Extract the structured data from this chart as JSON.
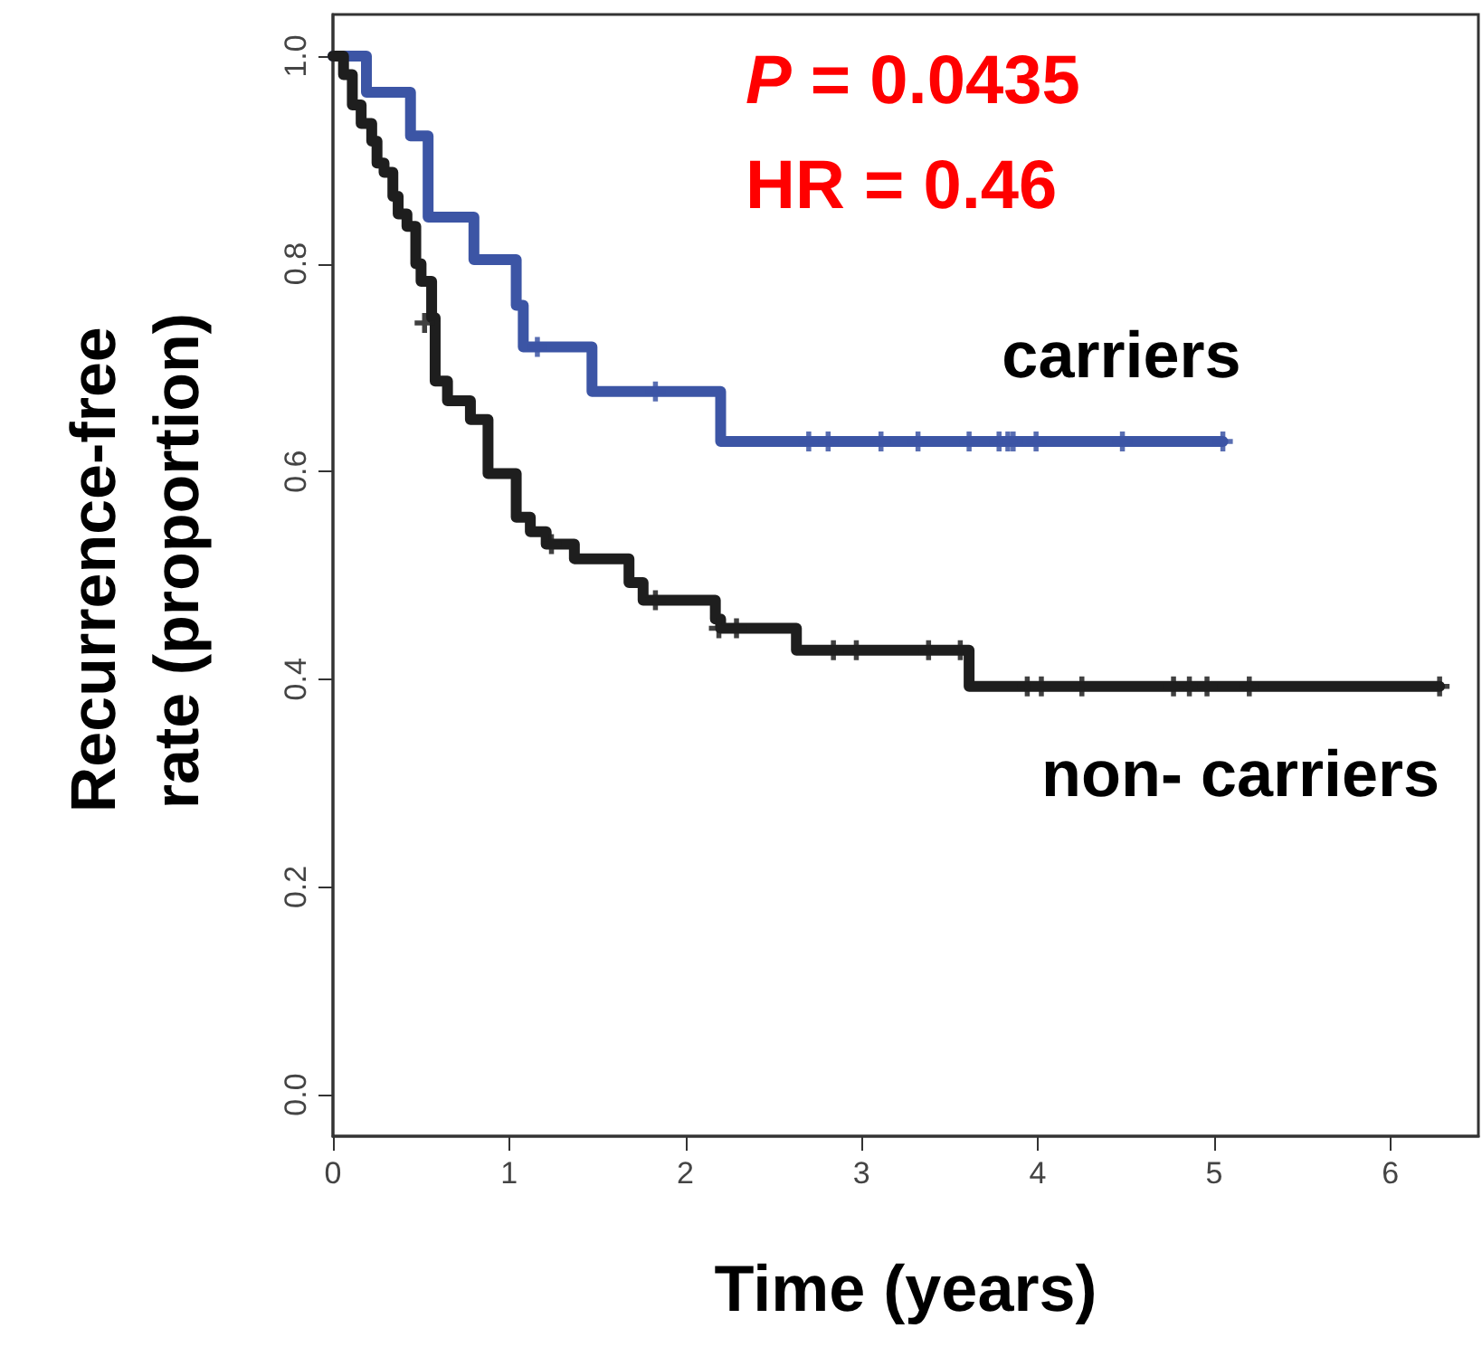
{
  "chart_data": {
    "type": "step",
    "xlabel": "Time (years)",
    "ylabel": "Recurrence-free rate (proportion)",
    "annotations": [
      "P = 0.0435",
      "HR = 0.46"
    ],
    "xlim": [
      0,
      6.5
    ],
    "ylim": [
      -0.04,
      1.04
    ],
    "xticks": [
      0,
      1,
      2,
      3,
      4,
      5,
      6
    ],
    "yticks": [
      {
        "value": 0,
        "label": "0.0"
      },
      {
        "value": 0.2,
        "label": "0.2"
      },
      {
        "value": 0.4,
        "label": "0.4"
      },
      {
        "value": 0.6,
        "label": "0.6"
      },
      {
        "value": 0.8,
        "label": "0.8"
      },
      {
        "value": 1,
        "label": "1.0"
      }
    ],
    "grid": false,
    "legend": false,
    "series": [
      {
        "name": "carriers",
        "color": "#3c55a5",
        "marker": "none",
        "x": [
          0,
          0.19,
          0.44,
          0.54,
          0.8,
          1.04,
          1.08,
          1.47,
          2.2,
          5.05
        ],
        "values": [
          1,
          0.965,
          0.923,
          0.845,
          0.804,
          0.76,
          0.72,
          0.677,
          0.629,
          0.629
        ]
      },
      {
        "name": "non- carriers",
        "color": "#1e1e1e",
        "marker": "none",
        "x": [
          0,
          0.06,
          0.11,
          0.16,
          0.22,
          0.25,
          0.29,
          0.34,
          0.37,
          0.42,
          0.47,
          0.5,
          0.56,
          0.58,
          0.65,
          0.78,
          0.88,
          1.04,
          1.12,
          1.21,
          1.37,
          1.68,
          1.76,
          2.17,
          2.2,
          2.63,
          3.61,
          6.28
        ],
        "values": [
          1,
          0.982,
          0.953,
          0.935,
          0.918,
          0.897,
          0.888,
          0.865,
          0.848,
          0.836,
          0.8,
          0.783,
          0.748,
          0.687,
          0.668,
          0.65,
          0.598,
          0.556,
          0.542,
          0.53,
          0.516,
          0.493,
          0.476,
          0.458,
          0.449,
          0.428,
          0.393,
          0.393
        ]
      },
      {
        "type": "scatter",
        "color": "#3c55a5",
        "marker": "cross",
        "x": [
          1.16,
          1.83,
          2.7,
          2.81,
          3.11,
          3.32,
          3.61,
          3.78,
          3.83,
          3.86,
          3.99,
          4.48,
          5.05
        ],
        "values": [
          0.72,
          0.677,
          0.629,
          0.629,
          0.629,
          0.629,
          0.629,
          0.629,
          0.629,
          0.629,
          0.629,
          0.629,
          0.629
        ]
      },
      {
        "type": "scatter",
        "color": "#1e1e1e",
        "marker": "cross",
        "x": [
          0.52,
          1.24,
          1.83,
          2.19,
          2.29,
          2.84,
          2.97,
          3.38,
          3.56,
          3.94,
          4.02,
          4.25,
          4.77,
          4.86,
          4.96,
          5.2,
          6.28
        ],
        "values": [
          0.743,
          0.53,
          0.476,
          0.449,
          0.449,
          0.428,
          0.428,
          0.428,
          0.428,
          0.393,
          0.393,
          0.393,
          0.393,
          0.393,
          0.393,
          0.393,
          0.393
        ]
      }
    ]
  }
}
